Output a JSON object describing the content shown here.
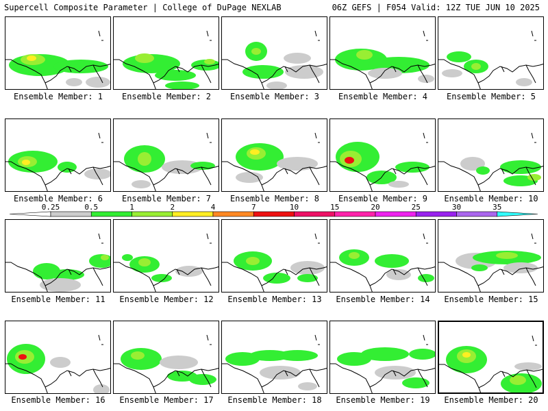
{
  "header": {
    "left": "Supercell Composite Parameter | College of DuPage NEXLAB",
    "right": "06Z GEFS | F054 Valid: 12Z TUE JUN 10 2025"
  },
  "colorbar": {
    "ticks": [
      "0.25",
      "0.5",
      "1",
      "2",
      "4",
      "7",
      "10",
      "15",
      "20",
      "25",
      "30",
      "35"
    ],
    "colors": [
      "#cccccc",
      "#33ee33",
      "#99ee33",
      "#ffee22",
      "#ff8822",
      "#ee1111",
      "#ee1166",
      "#ff22aa",
      "#ee22ee",
      "#9922ee",
      "#aa66ee",
      "#33ffff"
    ]
  },
  "panels": [
    {
      "caption": "Ensemble Member: 1"
    },
    {
      "caption": "Ensemble Member: 2"
    },
    {
      "caption": "Ensemble Member: 3"
    },
    {
      "caption": "Ensemble Member: 4"
    },
    {
      "caption": "Ensemble Member: 5"
    },
    {
      "caption": "Ensemble Member: 6"
    },
    {
      "caption": "Ensemble Member: 7"
    },
    {
      "caption": "Ensemble Member: 8"
    },
    {
      "caption": "Ensemble Member: 9"
    },
    {
      "caption": "Ensemble Member: 10"
    },
    {
      "caption": "Ensemble Member: 11"
    },
    {
      "caption": "Ensemble Member: 12"
    },
    {
      "caption": "Ensemble Member: 13"
    },
    {
      "caption": "Ensemble Member: 14"
    },
    {
      "caption": "Ensemble Member: 15"
    },
    {
      "caption": "Ensemble Member: 16"
    },
    {
      "caption": "Ensemble Member: 17"
    },
    {
      "caption": "Ensemble Member: 18"
    },
    {
      "caption": "Ensemble Member: 19"
    },
    {
      "caption": "Ensemble Member: 20"
    }
  ],
  "selected_member": 20
}
